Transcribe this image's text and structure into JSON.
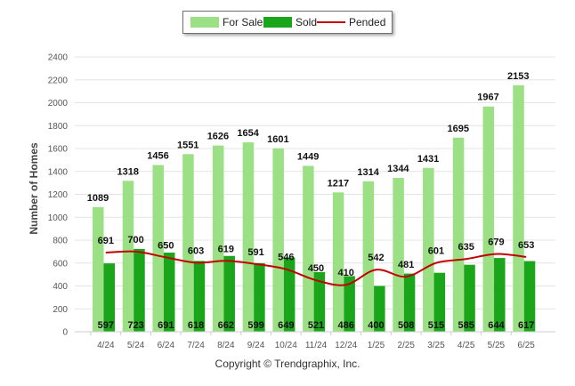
{
  "chart_data": {
    "type": "bar",
    "categories": [
      "4/24",
      "5/24",
      "6/24",
      "7/24",
      "8/24",
      "9/24",
      "10/24",
      "11/24",
      "12/24",
      "1/25",
      "2/25",
      "3/25",
      "4/25",
      "5/25",
      "6/25"
    ],
    "series": [
      {
        "name": "For Sale",
        "kind": "bar",
        "color": "#9be085",
        "values": [
          1089,
          1318,
          1456,
          1551,
          1626,
          1654,
          1601,
          1449,
          1217,
          1314,
          1344,
          1431,
          1695,
          1967,
          2153
        ]
      },
      {
        "name": "Sold",
        "kind": "bar",
        "color": "#1aa51a",
        "values": [
          597,
          723,
          691,
          618,
          662,
          599,
          649,
          521,
          486,
          400,
          508,
          515,
          585,
          644,
          617
        ]
      },
      {
        "name": "Pended",
        "kind": "line",
        "color": "#c40000",
        "values": [
          691,
          700,
          650,
          603,
          619,
          591,
          546,
          450,
          410,
          542,
          481,
          601,
          635,
          679,
          653
        ]
      }
    ],
    "ylabel": "Number of Homes",
    "xlabel": "",
    "ylim": [
      0,
      2400
    ],
    "yticks": [
      0,
      200,
      400,
      600,
      800,
      1000,
      1200,
      1400,
      1600,
      1800,
      2000,
      2200,
      2400
    ],
    "grid": true,
    "legend_position": "top-center"
  },
  "legend": {
    "for_sale": "For Sale",
    "sold": "Sold",
    "pended": "Pended"
  },
  "footer": {
    "copyright": "Copyright © Trendgraphix, Inc."
  }
}
